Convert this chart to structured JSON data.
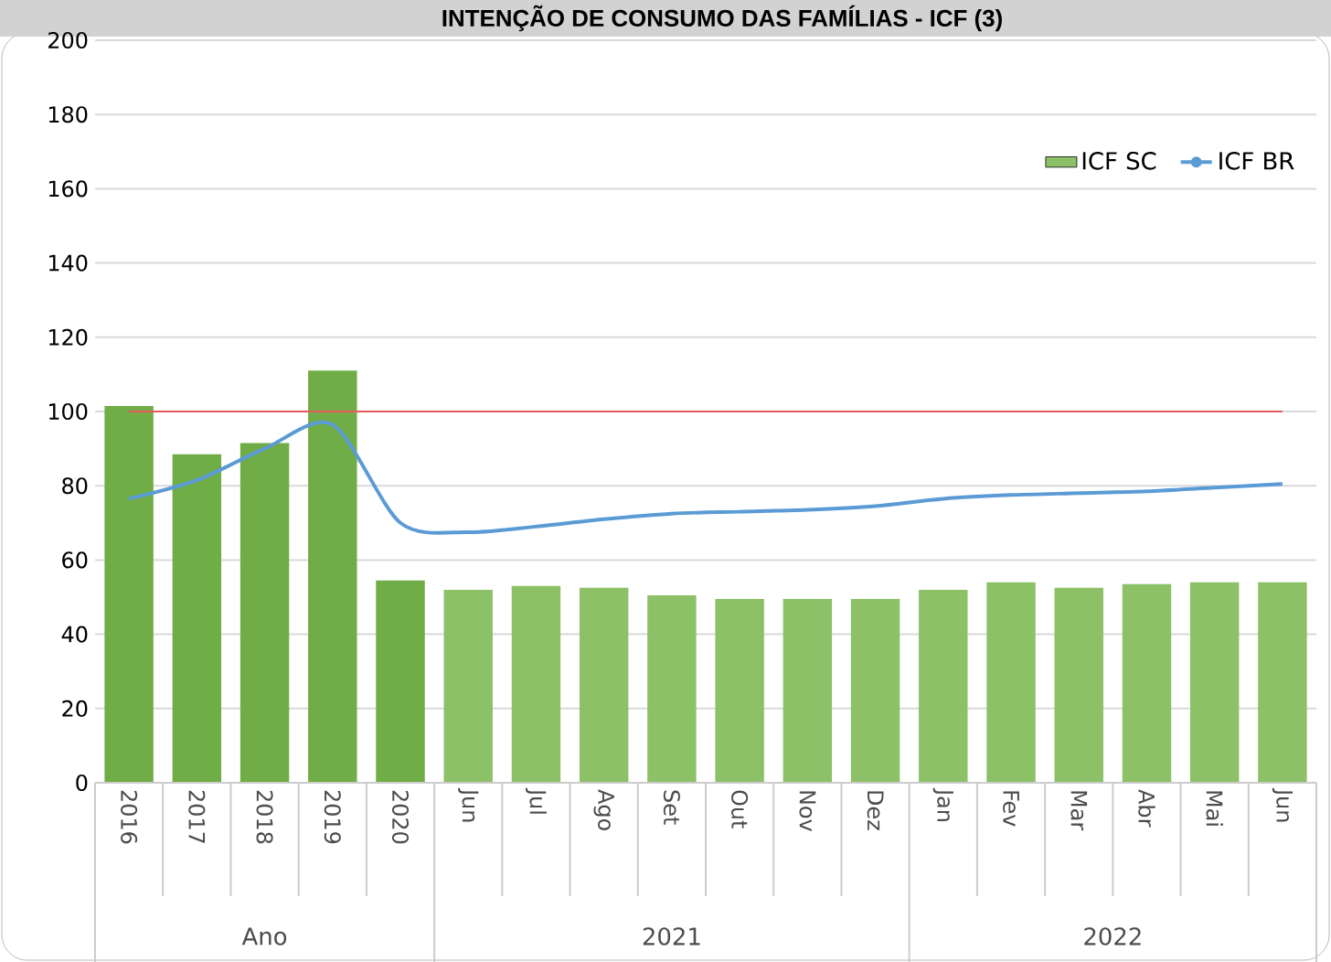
{
  "chart_data": {
    "type": "bar",
    "title": "INTENÇÃO DE CONSUMO DAS FAMÍLIAS - ICF (3)",
    "categories": [
      "2016",
      "2017",
      "2018",
      "2019",
      "2020",
      "Jun",
      "Jul",
      "Ago",
      "Set",
      "Out",
      "Nov",
      "Dez",
      "Jan",
      "Fev",
      "Mar",
      "Abr",
      "Mai",
      "Jun"
    ],
    "series": [
      {
        "name": "ICF SC",
        "color": "#8cc168",
        "colors": [
          "#70ad47",
          "#70ad47",
          "#70ad47",
          "#70ad47",
          "#70ad47",
          "#8cc168",
          "#8cc168",
          "#8cc168",
          "#8cc168",
          "#8cc168",
          "#8cc168",
          "#8cc168",
          "#8cc168",
          "#8cc168",
          "#8cc168",
          "#8cc168",
          "#8cc168",
          "#8cc168"
        ],
        "values": [
          101.5,
          88.5,
          91.5,
          111,
          54.5,
          52,
          53,
          52.5,
          50.5,
          49.5,
          49.5,
          49.5,
          52,
          54,
          52.5,
          53.5,
          54,
          54
        ]
      },
      {
        "name": "ICF BR",
        "type": "line",
        "color": "#5b9bd5",
        "line_style": "solid",
        "values": [
          76.5,
          81.5,
          90,
          96.5,
          70,
          67.5,
          69,
          71,
          72.5,
          73,
          73.5,
          74.5,
          76.5,
          77.5,
          78,
          78.5,
          79.5,
          80.5
        ]
      }
    ],
    "ylim": [
      0,
      200
    ],
    "yticks": [
      0,
      20,
      40,
      60,
      80,
      100,
      120,
      140,
      160,
      180,
      200
    ],
    "grid": "y",
    "legend": "top right",
    "ref_lines": [
      {
        "axis": "y",
        "value": 100,
        "color": "#e8585a"
      }
    ],
    "annotations": [
      "Ano",
      "2021",
      "2022"
    ]
  }
}
